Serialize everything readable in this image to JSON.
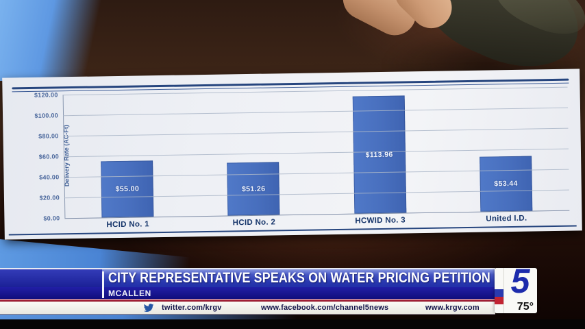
{
  "banner": {
    "headline": "CITY REPRESENTATIVE SPEAKS ON WATER PRICING PETITION",
    "location": "MCALLEN"
  },
  "ticker": {
    "twitter_label": "twitter.com/krgv",
    "facebook_label": "www.facebook.com/channel5news",
    "website_label": "www.krgv.com"
  },
  "station": {
    "channel_number": "5",
    "temperature": "75°"
  },
  "chart_data": {
    "type": "bar",
    "title": "",
    "categories": [
      "HCID No. 1",
      "HCID No. 2",
      "HCWID No. 3",
      "United I.D."
    ],
    "values": [
      55.0,
      51.26,
      113.96,
      53.44
    ],
    "bar_labels": [
      "$55.00",
      "$51.26",
      "$113.96",
      "$53.44"
    ],
    "xlabel": "",
    "ylabel": "Delivery Rate (AC-Ft)",
    "ylim": [
      0,
      120
    ],
    "ytick_step": 20,
    "ytick_labels": [
      "$0.00",
      "$20.00",
      "$40.00",
      "$60.00",
      "$80.00",
      "$100.00",
      "$120.00"
    ],
    "grid": true,
    "legend": null,
    "bar_color": "#4a71c2"
  },
  "colors": {
    "bar_blue": "#4a71c2",
    "chart_rule_blue": "#26457e",
    "banner_blue_dark": "#15137e",
    "banner_blue_mid": "#2d3cb4",
    "banner_red_line": "#a11d33",
    "ticker_text": "#14144a",
    "twitter_blue": "#2456a4",
    "logo_blue": "#1c2bac",
    "paper_white": "#eef0f5"
  }
}
